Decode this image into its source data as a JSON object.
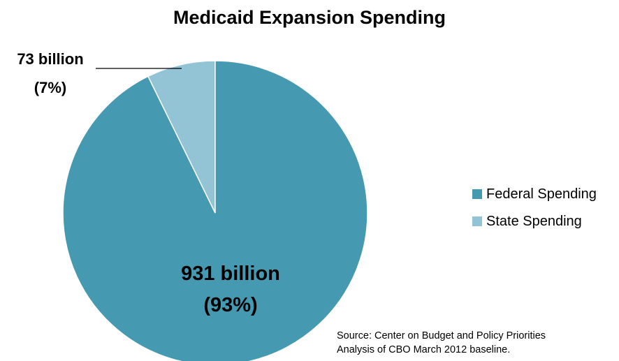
{
  "chart_data": {
    "type": "pie",
    "title": "Medicaid Expansion Spending",
    "slices": [
      {
        "name": "Federal Spending",
        "value": 931,
        "label": "931 billion",
        "percent_label": "(93%)",
        "color": "#4599b0"
      },
      {
        "name": "State Spending",
        "value": 73,
        "label": "73 billion",
        "percent_label": "(7%)",
        "color": "#93c4d6"
      }
    ],
    "legend": {
      "placement": "right",
      "entries": [
        "Federal Spending",
        "State Spending"
      ]
    },
    "source_lines": [
      "Source: Center on Budget and Policy Priorities",
      "Analysis of CBO March 2012 baseline."
    ]
  }
}
